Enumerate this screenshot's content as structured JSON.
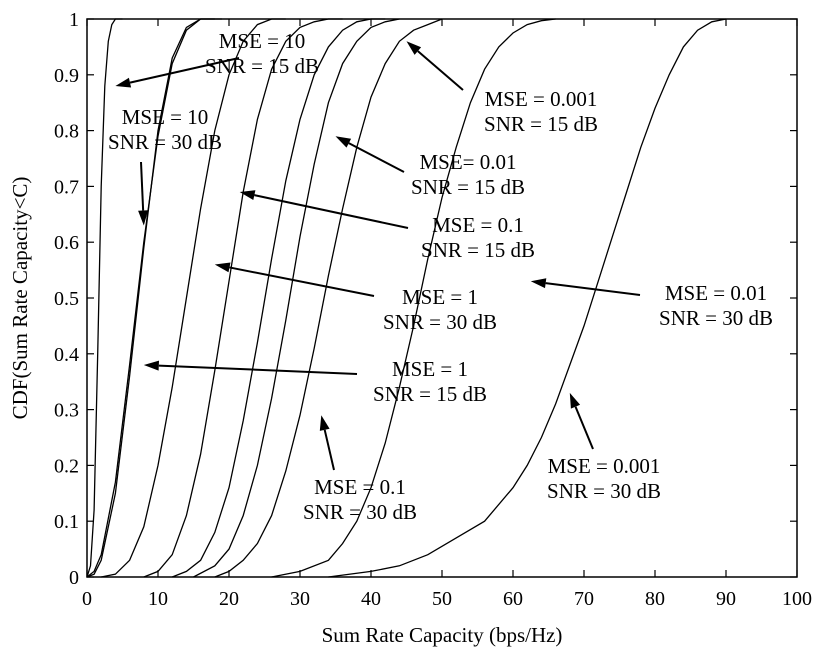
{
  "chart_data": {
    "type": "line",
    "title": "",
    "xlabel": "Sum Rate Capacity (bps/Hz)",
    "ylabel": "CDF(Sum Rate Capacity<C)",
    "xlim": [
      0,
      100
    ],
    "ylim": [
      0,
      1
    ],
    "x_ticks": [
      0,
      10,
      20,
      30,
      40,
      50,
      60,
      70,
      80,
      90,
      100
    ],
    "y_ticks": [
      0,
      0.1,
      0.2,
      0.3,
      0.4,
      0.5,
      0.6,
      0.7,
      0.8,
      0.9,
      1
    ],
    "grid": false,
    "series": [
      {
        "name": "MSE = 10, SNR = 15 dB",
        "x": [
          0,
          0.5,
          1,
          1.5,
          2,
          2.5,
          3,
          3.5,
          4,
          5
        ],
        "y": [
          0,
          0.02,
          0.12,
          0.4,
          0.7,
          0.88,
          0.96,
          0.99,
          1,
          1
        ]
      },
      {
        "name": "MSE = 10, SNR = 30 dB",
        "x": [
          0,
          1,
          2,
          4,
          6,
          8,
          10,
          12,
          14,
          16,
          18
        ],
        "y": [
          0,
          0.01,
          0.04,
          0.17,
          0.38,
          0.6,
          0.79,
          0.92,
          0.98,
          1,
          1
        ]
      },
      {
        "name": "MSE = 1, SNR = 15 dB",
        "x": [
          0,
          1,
          2,
          4,
          6,
          8,
          10,
          12,
          14,
          16,
          18,
          19
        ],
        "y": [
          0,
          0.005,
          0.03,
          0.15,
          0.36,
          0.59,
          0.8,
          0.93,
          0.985,
          1,
          1,
          1
        ]
      },
      {
        "name": "MSE = 1, SNR = 30 dB",
        "x": [
          2,
          4,
          6,
          8,
          10,
          12,
          14,
          16,
          18,
          20,
          22,
          24,
          26,
          28
        ],
        "y": [
          0,
          0.005,
          0.03,
          0.09,
          0.2,
          0.34,
          0.5,
          0.66,
          0.8,
          0.9,
          0.96,
          0.99,
          1,
          1
        ]
      },
      {
        "name": "MSE = 0.1, SNR = 15 dB",
        "x": [
          8,
          10,
          12,
          14,
          16,
          18,
          20,
          22,
          24,
          26,
          28,
          30,
          32,
          34,
          36
        ],
        "y": [
          0,
          0.01,
          0.04,
          0.11,
          0.22,
          0.37,
          0.53,
          0.69,
          0.82,
          0.91,
          0.96,
          0.985,
          0.995,
          1,
          1
        ]
      },
      {
        "name": "MSE = 0.1, SNR = 30 dB",
        "x": [
          12,
          14,
          16,
          18,
          20,
          22,
          24,
          26,
          28,
          30,
          32,
          34,
          36,
          38,
          40,
          42
        ],
        "y": [
          0,
          0.01,
          0.03,
          0.08,
          0.16,
          0.28,
          0.42,
          0.57,
          0.71,
          0.82,
          0.9,
          0.95,
          0.98,
          0.995,
          1,
          1
        ]
      },
      {
        "name": "MSE = 0.01, SNR = 15 dB",
        "x": [
          15,
          18,
          20,
          22,
          24,
          26,
          28,
          30,
          32,
          34,
          36,
          38,
          40,
          42,
          44
        ],
        "y": [
          0,
          0.02,
          0.05,
          0.11,
          0.2,
          0.32,
          0.46,
          0.61,
          0.74,
          0.85,
          0.92,
          0.96,
          0.985,
          0.995,
          1
        ]
      },
      {
        "name": "MSE = 0.001, SNR = 15 dB",
        "x": [
          18,
          20,
          22,
          24,
          26,
          28,
          30,
          32,
          34,
          36,
          38,
          40,
          42,
          44,
          46,
          48,
          50
        ],
        "y": [
          0,
          0.01,
          0.03,
          0.06,
          0.11,
          0.19,
          0.29,
          0.41,
          0.54,
          0.66,
          0.77,
          0.86,
          0.92,
          0.96,
          0.98,
          0.99,
          1
        ]
      },
      {
        "name": "MSE = 0.01, SNR = 30 dB",
        "x": [
          26,
          30,
          34,
          36,
          38,
          40,
          42,
          44,
          46,
          48,
          50,
          52,
          54,
          56,
          58,
          60,
          62,
          64,
          66
        ],
        "y": [
          0,
          0.01,
          0.03,
          0.06,
          0.1,
          0.16,
          0.24,
          0.34,
          0.45,
          0.57,
          0.68,
          0.77,
          0.85,
          0.91,
          0.95,
          0.975,
          0.99,
          0.997,
          1
        ]
      },
      {
        "name": "MSE = 0.001, SNR = 30 dB",
        "x": [
          34,
          40,
          44,
          48,
          52,
          56,
          60,
          62,
          64,
          66,
          68,
          70,
          72,
          74,
          76,
          78,
          80,
          82,
          84,
          86,
          88,
          90
        ],
        "y": [
          0,
          0.01,
          0.02,
          0.04,
          0.07,
          0.1,
          0.16,
          0.2,
          0.25,
          0.31,
          0.38,
          0.45,
          0.53,
          0.61,
          0.69,
          0.77,
          0.84,
          0.9,
          0.95,
          0.98,
          0.995,
          1
        ]
      }
    ],
    "annotations": [
      {
        "line1": "MSE = 10",
        "line2": "SNR = 15 dB",
        "points_to": [
          4,
          0.88
        ]
      },
      {
        "line1": "MSE = 10",
        "line2": "SNR = 30 dB",
        "points_to": [
          8,
          0.63
        ]
      },
      {
        "line1": "MSE = 1",
        "line2": "SNR = 15 dB",
        "points_to": [
          8,
          0.38
        ]
      },
      {
        "line1": "MSE = 1",
        "line2": "SNR = 30 dB",
        "points_to": [
          18,
          0.56
        ]
      },
      {
        "line1": "MSE = 0.1",
        "line2": "SNR = 15 dB",
        "points_to": [
          21.5,
          0.69
        ]
      },
      {
        "line1": "MSE= 0.01",
        "line2": "SNR = 15 dB",
        "points_to": [
          35,
          0.79
        ]
      },
      {
        "line1": "MSE = 0.001",
        "line2": "SNR = 15 dB",
        "points_to": [
          45,
          0.96
        ]
      },
      {
        "line1": "MSE = 0.1",
        "line2": "SNR = 30 dB",
        "points_to": [
          33,
          0.29
        ]
      },
      {
        "line1": "MSE = 0.01",
        "line2": "SNR = 30 dB",
        "points_to": [
          62.5,
          0.53
        ]
      },
      {
        "line1": "MSE = 0.001",
        "line2": "SNR = 30 dB",
        "points_to": [
          68,
          0.33
        ]
      }
    ]
  }
}
